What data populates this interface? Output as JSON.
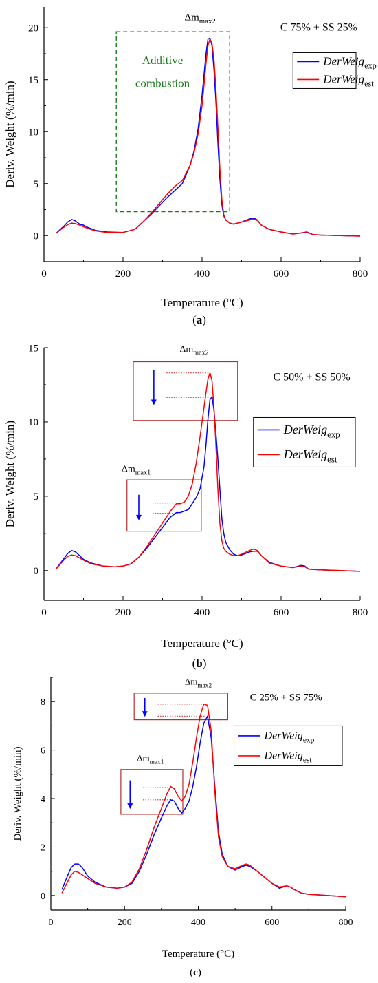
{
  "chart_data": [
    {
      "type": "line",
      "panel_label": "a",
      "xlabel": "Temperature (°C)",
      "ylabel": "Deriv. Weight (%/min)",
      "xlim": [
        0,
        800
      ],
      "ylim": [
        -2.5,
        22
      ],
      "xticks": [
        0,
        200,
        400,
        600,
        800
      ],
      "yticks": [
        0,
        5,
        10,
        15,
        20
      ],
      "legend_position": "top-right",
      "annotations": {
        "mixture": "C 75% + SS 25%",
        "peak2": {
          "main": "Δm",
          "sub": "max2"
        },
        "box_text_1": "Additive",
        "box_text_2": "combustion"
      },
      "series": [
        {
          "name": "DerWeig",
          "name_sub": "exp",
          "color": "#0000ff",
          "x": [
            30,
            50,
            60,
            70,
            80,
            90,
            100,
            110,
            130,
            160,
            200,
            230,
            250,
            270,
            290,
            310,
            330,
            350,
            370,
            380,
            390,
            400,
            405,
            410,
            415,
            420,
            425,
            430,
            435,
            440,
            445,
            450,
            455,
            460,
            470,
            480,
            500,
            520,
            530,
            540,
            550,
            570,
            600,
            630,
            650,
            665,
            680,
            700,
            750,
            800
          ],
          "y": [
            0.2,
            0.9,
            1.3,
            1.55,
            1.4,
            1.1,
            1.0,
            0.8,
            0.5,
            0.35,
            0.3,
            0.6,
            1.3,
            2.0,
            2.8,
            3.6,
            4.3,
            5.0,
            6.8,
            8.2,
            10.3,
            13.5,
            15.5,
            17.5,
            18.9,
            19.0,
            18.3,
            16.0,
            13.0,
            9.0,
            5.5,
            3.0,
            1.9,
            1.5,
            1.2,
            1.1,
            1.3,
            1.6,
            1.7,
            1.5,
            1.0,
            0.6,
            0.35,
            0.15,
            0.25,
            0.35,
            0.1,
            0.05,
            0.0,
            -0.05
          ]
        },
        {
          "name": "DerWeig",
          "name_sub": "est",
          "color": "#ff0000",
          "x": [
            30,
            50,
            60,
            70,
            80,
            90,
            100,
            110,
            130,
            160,
            200,
            230,
            250,
            270,
            290,
            310,
            330,
            350,
            370,
            380,
            390,
            400,
            405,
            410,
            415,
            420,
            425,
            430,
            435,
            440,
            445,
            450,
            455,
            460,
            470,
            480,
            500,
            520,
            530,
            540,
            550,
            570,
            600,
            630,
            650,
            665,
            680,
            700,
            750,
            800
          ],
          "y": [
            0.2,
            0.8,
            1.05,
            1.2,
            1.15,
            1.0,
            0.85,
            0.7,
            0.45,
            0.3,
            0.3,
            0.6,
            1.3,
            2.1,
            3.0,
            3.9,
            4.7,
            5.3,
            6.8,
            8.0,
            9.8,
            12.5,
            14.5,
            16.6,
            18.3,
            18.9,
            18.5,
            17.0,
            14.2,
            10.5,
            6.5,
            3.5,
            2.0,
            1.5,
            1.2,
            1.1,
            1.3,
            1.5,
            1.6,
            1.45,
            1.0,
            0.6,
            0.35,
            0.15,
            0.25,
            0.3,
            0.1,
            0.05,
            0.0,
            -0.05
          ]
        }
      ]
    },
    {
      "type": "line",
      "panel_label": "b",
      "xlabel": "Temperature (°C)",
      "ylabel": "Deriv. Weight (%/min)",
      "xlim": [
        0,
        800
      ],
      "ylim": [
        -2,
        15
      ],
      "xticks": [
        0,
        200,
        400,
        600,
        800
      ],
      "yticks": [
        0,
        5,
        10,
        15
      ],
      "legend_position": "right",
      "annotations": {
        "mixture": "C 50% + SS 50%",
        "peak1": {
          "main": "Δm",
          "sub": "max1"
        },
        "peak2": {
          "main": "Δm",
          "sub": "max2"
        }
      },
      "series": [
        {
          "name": "DerWeig",
          "name_sub": "exp",
          "color": "#0000ff",
          "x": [
            30,
            50,
            60,
            70,
            80,
            90,
            100,
            120,
            150,
            180,
            200,
            220,
            240,
            260,
            280,
            300,
            320,
            335,
            345,
            355,
            365,
            375,
            385,
            395,
            405,
            410,
            415,
            420,
            425,
            430,
            435,
            440,
            445,
            450,
            455,
            460,
            470,
            480,
            490,
            500,
            520,
            530,
            540,
            550,
            570,
            600,
            630,
            650,
            660,
            670,
            700,
            750,
            800
          ],
          "y": [
            0.1,
            0.8,
            1.15,
            1.35,
            1.25,
            1.0,
            0.75,
            0.5,
            0.3,
            0.25,
            0.3,
            0.45,
            0.9,
            1.5,
            2.2,
            2.9,
            3.6,
            3.9,
            3.9,
            4.0,
            4.1,
            4.5,
            4.9,
            5.5,
            7.0,
            8.5,
            10.2,
            11.5,
            11.7,
            10.8,
            9.3,
            7.5,
            5.5,
            3.5,
            2.5,
            1.9,
            1.4,
            1.1,
            1.0,
            1.05,
            1.25,
            1.3,
            1.3,
            1.0,
            0.55,
            0.3,
            0.2,
            0.35,
            0.3,
            0.1,
            0.05,
            0.0,
            -0.05
          ]
        },
        {
          "name": "DerWeig",
          "name_sub": "est",
          "color": "#ff0000",
          "x": [
            30,
            50,
            60,
            70,
            80,
            90,
            100,
            120,
            150,
            180,
            200,
            220,
            240,
            260,
            280,
            300,
            320,
            335,
            345,
            355,
            365,
            375,
            385,
            395,
            405,
            410,
            415,
            420,
            425,
            430,
            435,
            440,
            445,
            450,
            455,
            460,
            470,
            480,
            490,
            500,
            520,
            530,
            540,
            550,
            570,
            600,
            630,
            650,
            660,
            670,
            700,
            750,
            800
          ],
          "y": [
            0.1,
            0.7,
            0.95,
            1.05,
            1.0,
            0.85,
            0.7,
            0.45,
            0.3,
            0.25,
            0.3,
            0.45,
            0.9,
            1.6,
            2.4,
            3.2,
            4.0,
            4.5,
            4.5,
            4.6,
            5.0,
            5.8,
            7.2,
            9.0,
            11.0,
            12.0,
            12.9,
            13.3,
            12.8,
            11.0,
            8.5,
            5.5,
            3.2,
            2.0,
            1.5,
            1.3,
            1.1,
            1.0,
            1.0,
            1.1,
            1.35,
            1.45,
            1.35,
            1.0,
            0.5,
            0.3,
            0.2,
            0.3,
            0.25,
            0.1,
            0.05,
            0.0,
            -0.05
          ]
        }
      ]
    },
    {
      "type": "line",
      "panel_label": "c",
      "xlabel": "Temperature (°C)",
      "ylabel": "Deriv. Weight (%/min)",
      "xlim": [
        0,
        800
      ],
      "ylim": [
        -0.6,
        9
      ],
      "xticks": [
        0,
        200,
        400,
        600,
        800
      ],
      "yticks": [
        0,
        2,
        4,
        6,
        8
      ],
      "legend_position": "right",
      "annotations": {
        "mixture": "C 25% + SS 75%",
        "peak1": {
          "main": "Δm",
          "sub": "max1"
        },
        "peak2": {
          "main": "Δm",
          "sub": "max2"
        }
      },
      "series": [
        {
          "name": "DerWeig",
          "name_sub": "exp",
          "color": "#0000ff",
          "x": [
            30,
            45,
            55,
            65,
            75,
            85,
            100,
            120,
            150,
            180,
            200,
            220,
            240,
            260,
            280,
            300,
            315,
            325,
            335,
            345,
            355,
            365,
            375,
            385,
            395,
            405,
            415,
            425,
            435,
            445,
            455,
            465,
            480,
            500,
            520,
            530,
            540,
            560,
            580,
            600,
            620,
            640,
            650,
            660,
            680,
            700,
            750,
            800
          ],
          "y": [
            0.25,
            0.8,
            1.15,
            1.3,
            1.3,
            1.15,
            0.8,
            0.55,
            0.35,
            0.3,
            0.35,
            0.5,
            1.0,
            1.7,
            2.5,
            3.2,
            3.7,
            3.95,
            3.9,
            3.6,
            3.4,
            3.6,
            3.9,
            4.5,
            5.3,
            6.3,
            7.1,
            7.4,
            6.5,
            4.5,
            2.6,
            1.7,
            1.2,
            1.05,
            1.2,
            1.25,
            1.2,
            1.0,
            0.75,
            0.5,
            0.3,
            0.4,
            0.35,
            0.25,
            0.1,
            0.05,
            0.0,
            -0.05
          ]
        },
        {
          "name": "DerWeig",
          "name_sub": "est",
          "color": "#ff0000",
          "x": [
            30,
            45,
            55,
            65,
            75,
            85,
            100,
            120,
            150,
            180,
            200,
            220,
            240,
            260,
            280,
            300,
            315,
            325,
            335,
            345,
            355,
            365,
            375,
            385,
            395,
            405,
            415,
            425,
            435,
            445,
            455,
            465,
            480,
            500,
            520,
            530,
            540,
            560,
            580,
            600,
            620,
            640,
            650,
            660,
            680,
            700,
            750,
            800
          ],
          "y": [
            0.1,
            0.55,
            0.85,
            1.0,
            0.95,
            0.85,
            0.7,
            0.5,
            0.35,
            0.3,
            0.35,
            0.55,
            1.1,
            1.9,
            2.8,
            3.6,
            4.2,
            4.5,
            4.4,
            4.1,
            3.9,
            4.1,
            4.6,
            5.5,
            6.5,
            7.4,
            7.9,
            7.85,
            6.8,
            4.3,
            2.4,
            1.6,
            1.2,
            1.1,
            1.25,
            1.3,
            1.25,
            1.0,
            0.75,
            0.5,
            0.35,
            0.4,
            0.35,
            0.25,
            0.1,
            0.05,
            0.0,
            -0.05
          ]
        }
      ]
    }
  ]
}
